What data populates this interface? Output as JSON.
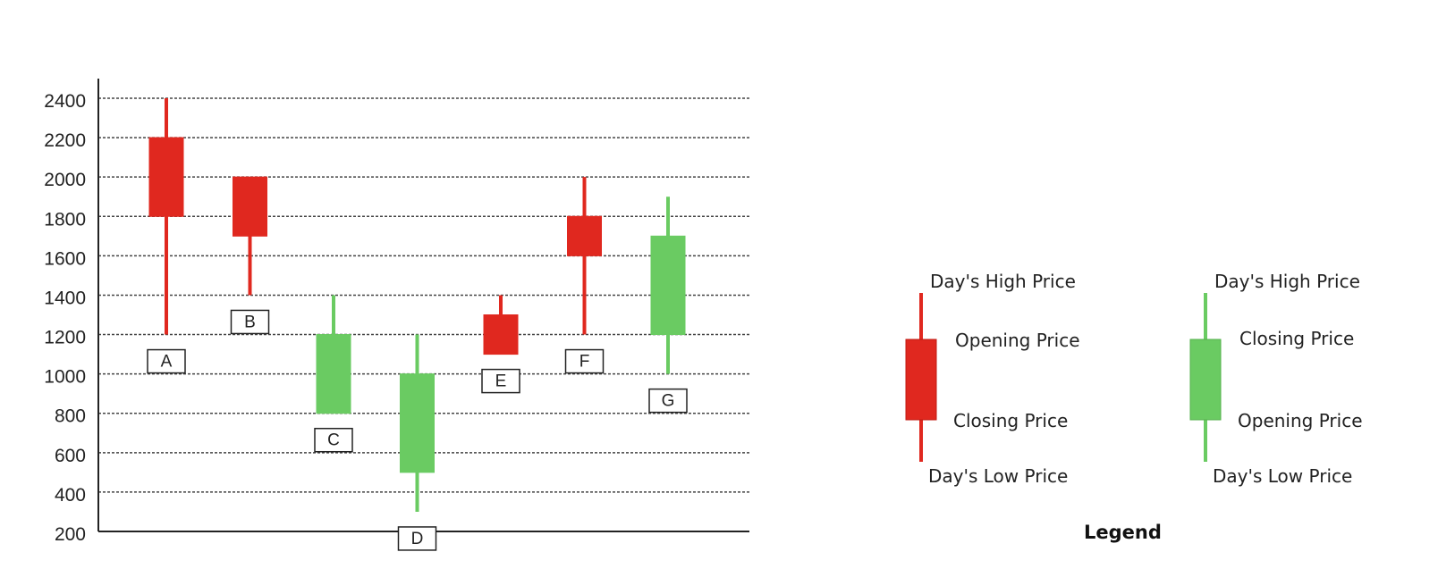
{
  "chart_data": {
    "type": "candlestick",
    "categories": [
      "A",
      "B",
      "C",
      "D",
      "E",
      "F",
      "G"
    ],
    "candles": [
      {
        "label": "A",
        "open": 2200,
        "close": 1800,
        "high": 2400,
        "low": 1200,
        "direction": "down"
      },
      {
        "label": "B",
        "open": 2000,
        "close": 1700,
        "high": 2000,
        "low": 1400,
        "direction": "down"
      },
      {
        "label": "C",
        "open": 800,
        "close": 1200,
        "high": 1400,
        "low": 800,
        "direction": "up"
      },
      {
        "label": "D",
        "open": 500,
        "close": 1000,
        "high": 1200,
        "low": 300,
        "direction": "up"
      },
      {
        "label": "E",
        "open": 1300,
        "close": 1100,
        "high": 1400,
        "low": 1100,
        "direction": "down"
      },
      {
        "label": "F",
        "open": 1800,
        "close": 1600,
        "high": 2000,
        "low": 1200,
        "direction": "down"
      },
      {
        "label": "G",
        "open": 1200,
        "close": 1700,
        "high": 1900,
        "low": 1000,
        "direction": "up"
      }
    ],
    "yticks": [
      "2400",
      "2200",
      "2000",
      "1800",
      "1600",
      "1400",
      "1200",
      "1000",
      "800",
      "600",
      "400",
      "200"
    ],
    "ylim": [
      200,
      2400
    ],
    "grid": true,
    "colors": {
      "down": "#e0281f",
      "up": "#6acb62",
      "axis": "#222222",
      "grid": "#444444"
    }
  },
  "legend": {
    "title": "Legend",
    "down": {
      "high": "Day's High Price",
      "open": "Opening Price",
      "close": "Closing Price",
      "low": "Day's Low Price"
    },
    "up": {
      "high": "Day's High Price",
      "close": "Closing Price",
      "open": "Opening Price",
      "low": "Day's Low Price"
    }
  }
}
